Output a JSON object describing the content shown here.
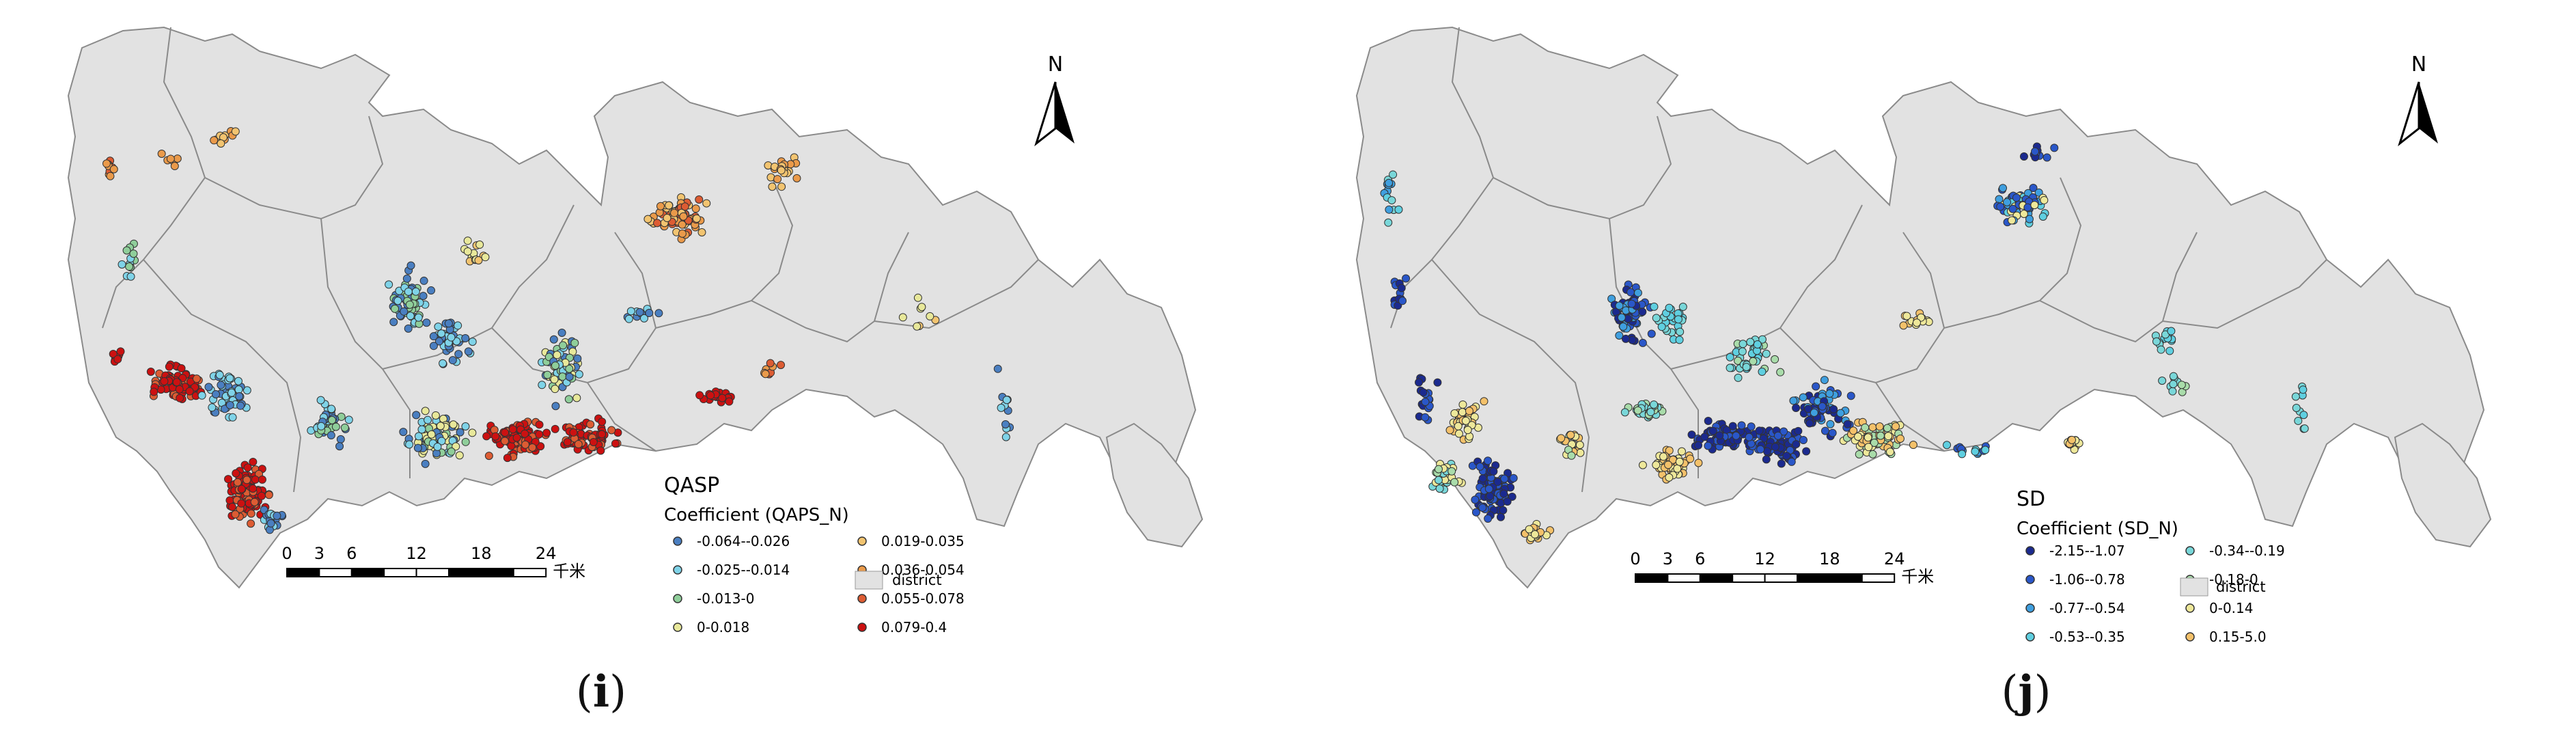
{
  "figure": {
    "panels": [
      {
        "id": "i",
        "caption_open": "(",
        "caption_letter": "i",
        "caption_close": ")",
        "legend_title": "QASP",
        "legend_subtitle": "Coefficient (QAPS_N)",
        "classes": [
          {
            "label": "-0.064--0.026",
            "color": "#4a7fc1"
          },
          {
            "label": "-0.025--0.014",
            "color": "#7fd3e8"
          },
          {
            "label": "-0.013-0",
            "color": "#8fce9a"
          },
          {
            "label": "0-0.018",
            "color": "#e8e89a"
          },
          {
            "label": "0.019-0.035",
            "color": "#f2c470"
          },
          {
            "label": "0.036-0.054",
            "color": "#ea9a4a"
          },
          {
            "label": "0.055-0.078",
            "color": "#dd5c33"
          },
          {
            "label": "0.079-0.4",
            "color": "#cc1111"
          }
        ],
        "district_label": "district",
        "scale_ticks": [
          "0",
          "3",
          "6",
          "12",
          "18",
          "24"
        ],
        "scale_unit": "千米",
        "north": "N"
      },
      {
        "id": "j",
        "caption_open": "(",
        "caption_letter": "j",
        "caption_close": ")",
        "legend_title": "SD",
        "legend_subtitle": "Coefficient (SD_N)",
        "classes": [
          {
            "label": "-2.15--1.07",
            "color": "#1b2a8f"
          },
          {
            "label": "-1.06--0.78",
            "color": "#2a57c9"
          },
          {
            "label": "-0.77--0.54",
            "color": "#3f9fdf"
          },
          {
            "label": "-0.53--0.35",
            "color": "#5fcfe0"
          },
          {
            "label": "-0.34--0.19",
            "color": "#79d7d9"
          },
          {
            "label": "-0.18-0",
            "color": "#a9dcaa"
          },
          {
            "label": "0-0.14",
            "color": "#eee89a"
          },
          {
            "label": "0.15-5.0",
            "color": "#f4c16a"
          }
        ],
        "district_label": "district",
        "scale_ticks": [
          "0",
          "3",
          "6",
          "12",
          "18",
          "24"
        ],
        "scale_unit": "千米",
        "north": "N"
      }
    ],
    "colors": {
      "land": "#e2e2e2",
      "boundary": "#8a8a8a",
      "point_stroke": "#333333"
    }
  }
}
